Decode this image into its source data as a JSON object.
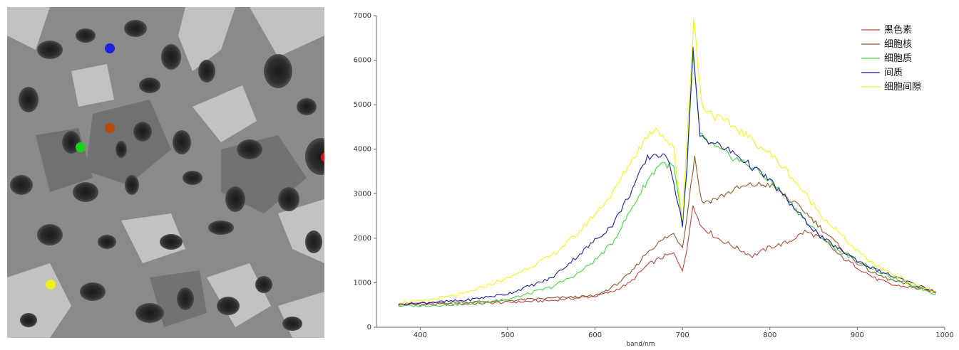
{
  "image_panel": {
    "description_icon": "microscopy-cell-image-icon",
    "markers": [
      {
        "color": "#1f1fe0"
      },
      {
        "color": "#b84a10"
      },
      {
        "color": "#18d418"
      },
      {
        "color": "#e81010"
      },
      {
        "color": "#f0f01a"
      }
    ]
  },
  "chart_data": {
    "type": "line",
    "title": "",
    "xlabel": "band/nm",
    "ylabel": "",
    "xlim": [
      350,
      1000
    ],
    "ylim": [
      0,
      7000
    ],
    "x_ticks": [
      400,
      500,
      600,
      700,
      800,
      900,
      1000
    ],
    "y_ticks": [
      0,
      1000,
      2000,
      3000,
      4000,
      5000,
      6000,
      7000
    ],
    "legend_position": "top-right",
    "grid": false,
    "series": [
      {
        "name": "黑色素",
        "color": "#b5493f",
        "points": [
          [
            375,
            520
          ],
          [
            400,
            510
          ],
          [
            450,
            520
          ],
          [
            500,
            560
          ],
          [
            550,
            600
          ],
          [
            600,
            700
          ],
          [
            620,
            800
          ],
          [
            640,
            1000
          ],
          [
            660,
            1400
          ],
          [
            680,
            1600
          ],
          [
            690,
            1650
          ],
          [
            700,
            1300
          ],
          [
            705,
            1700
          ],
          [
            712,
            2800
          ],
          [
            720,
            2300
          ],
          [
            740,
            2000
          ],
          [
            760,
            1800
          ],
          [
            780,
            1600
          ],
          [
            800,
            1800
          ],
          [
            820,
            1900
          ],
          [
            840,
            2150
          ],
          [
            860,
            2000
          ],
          [
            880,
            1600
          ],
          [
            900,
            1350
          ],
          [
            920,
            1100
          ],
          [
            940,
            950
          ],
          [
            960,
            900
          ],
          [
            990,
            800
          ]
        ]
      },
      {
        "name": "细胞核",
        "color": "#8b5a2b",
        "points": [
          [
            375,
            520
          ],
          [
            400,
            540
          ],
          [
            450,
            560
          ],
          [
            500,
            600
          ],
          [
            550,
            650
          ],
          [
            600,
            700
          ],
          [
            620,
            900
          ],
          [
            640,
            1200
          ],
          [
            660,
            1700
          ],
          [
            680,
            2000
          ],
          [
            690,
            2100
          ],
          [
            700,
            1800
          ],
          [
            705,
            2500
          ],
          [
            714,
            3850
          ],
          [
            722,
            2800
          ],
          [
            740,
            2900
          ],
          [
            760,
            3100
          ],
          [
            780,
            3200
          ],
          [
            800,
            3200
          ],
          [
            820,
            2900
          ],
          [
            840,
            2600
          ],
          [
            860,
            2200
          ],
          [
            880,
            1800
          ],
          [
            900,
            1450
          ],
          [
            920,
            1200
          ],
          [
            940,
            1050
          ],
          [
            960,
            950
          ],
          [
            990,
            780
          ]
        ]
      },
      {
        "name": "细胞质",
        "color": "#3fd640",
        "points": [
          [
            375,
            480
          ],
          [
            400,
            480
          ],
          [
            450,
            520
          ],
          [
            500,
            620
          ],
          [
            550,
            900
          ],
          [
            580,
            1200
          ],
          [
            600,
            1500
          ],
          [
            620,
            1900
          ],
          [
            640,
            2600
          ],
          [
            660,
            3300
          ],
          [
            675,
            3700
          ],
          [
            690,
            3600
          ],
          [
            700,
            2350
          ],
          [
            705,
            3400
          ],
          [
            712,
            6150
          ],
          [
            720,
            4300
          ],
          [
            740,
            4000
          ],
          [
            760,
            3800
          ],
          [
            780,
            3600
          ],
          [
            800,
            3300
          ],
          [
            820,
            2900
          ],
          [
            840,
            2400
          ],
          [
            860,
            2000
          ],
          [
            880,
            1700
          ],
          [
            900,
            1500
          ],
          [
            920,
            1300
          ],
          [
            940,
            1100
          ],
          [
            960,
            950
          ],
          [
            990,
            750
          ]
        ]
      },
      {
        "name": "间质",
        "color": "#1f1fa0",
        "points": [
          [
            375,
            520
          ],
          [
            400,
            540
          ],
          [
            450,
            600
          ],
          [
            500,
            750
          ],
          [
            550,
            1100
          ],
          [
            580,
            1600
          ],
          [
            600,
            1950
          ],
          [
            620,
            2300
          ],
          [
            640,
            3000
          ],
          [
            660,
            3800
          ],
          [
            670,
            3900
          ],
          [
            685,
            3750
          ],
          [
            700,
            2300
          ],
          [
            705,
            3600
          ],
          [
            712,
            6200
          ],
          [
            720,
            4300
          ],
          [
            740,
            4100
          ],
          [
            760,
            3900
          ],
          [
            780,
            3600
          ],
          [
            800,
            3300
          ],
          [
            820,
            2850
          ],
          [
            840,
            2400
          ],
          [
            860,
            2000
          ],
          [
            880,
            1750
          ],
          [
            900,
            1500
          ],
          [
            920,
            1300
          ],
          [
            940,
            1150
          ],
          [
            960,
            1000
          ],
          [
            990,
            800
          ]
        ]
      },
      {
        "name": "细胞间隙",
        "color": "#f2f21c",
        "points": [
          [
            375,
            560
          ],
          [
            400,
            580
          ],
          [
            450,
            750
          ],
          [
            500,
            1100
          ],
          [
            550,
            1600
          ],
          [
            580,
            2100
          ],
          [
            600,
            2550
          ],
          [
            620,
            3000
          ],
          [
            640,
            3700
          ],
          [
            660,
            4300
          ],
          [
            670,
            4500
          ],
          [
            690,
            4000
          ],
          [
            700,
            2400
          ],
          [
            705,
            4200
          ],
          [
            713,
            6900
          ],
          [
            722,
            5000
          ],
          [
            740,
            4700
          ],
          [
            760,
            4500
          ],
          [
            780,
            4200
          ],
          [
            800,
            3900
          ],
          [
            820,
            3500
          ],
          [
            840,
            3000
          ],
          [
            860,
            2500
          ],
          [
            880,
            2100
          ],
          [
            900,
            1700
          ],
          [
            920,
            1400
          ],
          [
            940,
            1200
          ],
          [
            960,
            1000
          ],
          [
            990,
            800
          ]
        ]
      }
    ]
  }
}
